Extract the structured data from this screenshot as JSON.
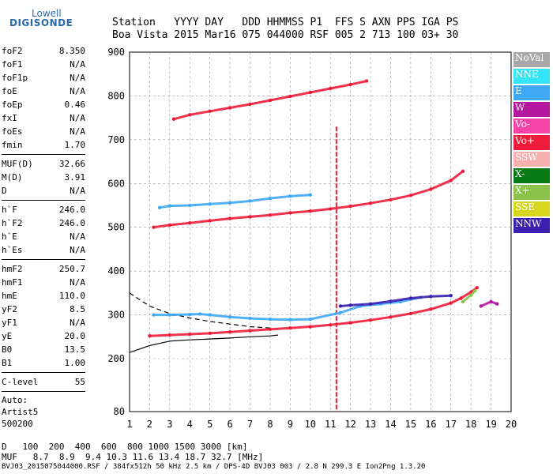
{
  "logo": {
    "top": "Lowell",
    "main": "DIGISONDE"
  },
  "header": {
    "labels": [
      "Station",
      "YYYY",
      "DAY",
      "DDD",
      "HHMMSS",
      "P1",
      "FFS",
      "S",
      "AXN",
      "PPS",
      "IGA",
      "PS"
    ],
    "values": [
      "Boa Vista",
      "2015",
      "Mar16",
      "075",
      "044000",
      "RSF",
      "005",
      "2",
      "713",
      "100",
      "03+",
      "30"
    ]
  },
  "params": {
    "group1": [
      {
        "label": "foF2",
        "value": "8.350"
      },
      {
        "label": "foF1",
        "value": "N/A"
      },
      {
        "label": "foF1p",
        "value": "N/A"
      },
      {
        "label": "foE",
        "value": "N/A"
      },
      {
        "label": "foEp",
        "value": "0.46"
      },
      {
        "label": "fxI",
        "value": "N/A"
      },
      {
        "label": "foEs",
        "value": "N/A"
      },
      {
        "label": "fmin",
        "value": "1.70"
      }
    ],
    "group2": [
      {
        "label": "MUF(D)",
        "value": "32.66"
      },
      {
        "label": "M(D)",
        "value": "3.91"
      },
      {
        "label": "D",
        "value": "N/A"
      }
    ],
    "group3": [
      {
        "label": "h`F",
        "value": "246.0"
      },
      {
        "label": "h`F2",
        "value": "246.0"
      },
      {
        "label": "h`E",
        "value": "N/A"
      },
      {
        "label": "h`Es",
        "value": "N/A"
      }
    ],
    "group4": [
      {
        "label": "hmF2",
        "value": "250.7"
      },
      {
        "label": "hmF1",
        "value": "N/A"
      },
      {
        "label": "hmE",
        "value": "110.0"
      },
      {
        "label": "yF2",
        "value": "8.5"
      },
      {
        "label": "yF1",
        "value": "N/A"
      },
      {
        "label": "yE",
        "value": "20.0"
      },
      {
        "label": "B0",
        "value": "13.5"
      },
      {
        "label": "B1",
        "value": "1.00"
      }
    ],
    "clevel": {
      "label": "C-level",
      "value": "55"
    },
    "autoscale": [
      "Auto:",
      "Artist5",
      "500200"
    ]
  },
  "legend": [
    {
      "label": "NoVal",
      "color": "#a8a8a8"
    },
    {
      "label": "NNE",
      "color": "#33e5f5"
    },
    {
      "label": "E",
      "color": "#3fa9f5"
    },
    {
      "label": "W",
      "color": "#b5179e"
    },
    {
      "label": "Vo-",
      "color": "#f543a8"
    },
    {
      "label": "Vo+",
      "color": "#ee1c3a"
    },
    {
      "label": "SSW",
      "color": "#f7b0b0"
    },
    {
      "label": "X-",
      "color": "#0a7a16"
    },
    {
      "label": "X+",
      "color": "#8bc34a"
    },
    {
      "label": "SSE",
      "color": "#d7d71e"
    },
    {
      "label": "NNW",
      "color": "#3a1fb0"
    }
  ],
  "footer": {
    "d_label": "D",
    "d_values": [
      "100",
      "200",
      "400",
      "600",
      "800",
      "1000",
      "1500",
      "3000",
      "[km]"
    ],
    "muf_label": "MUF",
    "muf_values": [
      "8.7",
      "8.9",
      "9.4",
      "10.3",
      "11.6",
      "13.4",
      "18.7",
      "32.7",
      "[MHz]"
    ],
    "file_line": "BVJ03_2015075044000.RSF / 384fx512h 50 kHz 2.5 km / DPS-4D BVJ03 003 / 2.8 N 299.3 E Ion2Png 1.3.20"
  },
  "chart_data": {
    "type": "scatter",
    "xlim": [
      1,
      20
    ],
    "ylim": [
      80,
      900
    ],
    "x_ticks": [
      "1",
      "2",
      "3",
      "4",
      "5",
      "6",
      "7",
      "8",
      "9",
      "10",
      "11",
      "12",
      "13",
      "14",
      "15",
      "16",
      "17",
      "18",
      "19",
      "20"
    ],
    "y_ticks": [
      "80",
      "200",
      "300",
      "400",
      "500",
      "600",
      "700",
      "800",
      "900"
    ],
    "grid": "dashed",
    "series": [
      {
        "color": "#ee1c3a",
        "points": [
          [
            2,
            252
          ],
          [
            3,
            254
          ],
          [
            4,
            256
          ],
          [
            5,
            258
          ],
          [
            6,
            261
          ],
          [
            7,
            264
          ],
          [
            8,
            267
          ],
          [
            9,
            270
          ],
          [
            10,
            273
          ],
          [
            11,
            277
          ],
          [
            12,
            282
          ],
          [
            13,
            288
          ],
          [
            14,
            295
          ],
          [
            15,
            303
          ],
          [
            16,
            313
          ],
          [
            17,
            327
          ],
          [
            17.5,
            338
          ],
          [
            18,
            352
          ],
          [
            18.3,
            362
          ]
        ]
      },
      {
        "color": "#ee1c3a",
        "points": [
          [
            2.2,
            500
          ],
          [
            3,
            505
          ],
          [
            4,
            510
          ],
          [
            5,
            515
          ],
          [
            6,
            520
          ],
          [
            7,
            524
          ],
          [
            8,
            528
          ],
          [
            9,
            533
          ],
          [
            10,
            537
          ],
          [
            11,
            542
          ],
          [
            12,
            548
          ],
          [
            13,
            555
          ],
          [
            14,
            563
          ],
          [
            15,
            573
          ],
          [
            16,
            587
          ],
          [
            17,
            607
          ],
          [
            17.6,
            628
          ]
        ]
      },
      {
        "color": "#ee1c3a",
        "points": [
          [
            3.2,
            747
          ],
          [
            4,
            757
          ],
          [
            5,
            765
          ],
          [
            6,
            773
          ],
          [
            7,
            781
          ],
          [
            8,
            790
          ],
          [
            9,
            799
          ],
          [
            10,
            808
          ],
          [
            11,
            817
          ],
          [
            12,
            826
          ],
          [
            12.8,
            834
          ]
        ]
      },
      {
        "color": "#3fa9f5",
        "points": [
          [
            2.2,
            300
          ],
          [
            3,
            300
          ],
          [
            4,
            301
          ],
          [
            4.5,
            302
          ],
          [
            5,
            300
          ],
          [
            6,
            295
          ],
          [
            7,
            292
          ],
          [
            8,
            290
          ],
          [
            9,
            289
          ],
          [
            10,
            290
          ],
          [
            11.5,
            305
          ],
          [
            12.5,
            320
          ],
          [
            13.5,
            325
          ],
          [
            14.5,
            330
          ],
          [
            15.5,
            340
          ]
        ]
      },
      {
        "color": "#3fa9f5",
        "points": [
          [
            2.5,
            545
          ],
          [
            3,
            549
          ],
          [
            4,
            550
          ],
          [
            5,
            553
          ],
          [
            6,
            556
          ],
          [
            7,
            560
          ],
          [
            8,
            566
          ],
          [
            9,
            571
          ],
          [
            10,
            574
          ]
        ]
      },
      {
        "color": "#3a1fb0",
        "points": [
          [
            11.5,
            320
          ],
          [
            12,
            322
          ],
          [
            13,
            325
          ],
          [
            14,
            331
          ],
          [
            15,
            338
          ],
          [
            16,
            342
          ],
          [
            17,
            344
          ]
        ]
      },
      {
        "color": "#b5179e",
        "points": [
          [
            18.5,
            320
          ],
          [
            19,
            330
          ],
          [
            19.3,
            325
          ]
        ]
      },
      {
        "color": "#8bc34a",
        "points": [
          [
            17.6,
            330
          ],
          [
            18,
            345
          ],
          [
            18.2,
            355
          ]
        ]
      }
    ],
    "model_curves": [
      {
        "style": "dashed",
        "points": [
          [
            1,
            350
          ],
          [
            2,
            320
          ],
          [
            3,
            303
          ],
          [
            4,
            293
          ],
          [
            5,
            285
          ],
          [
            6,
            279
          ],
          [
            7,
            273
          ],
          [
            8,
            270
          ]
        ]
      },
      {
        "style": "solid",
        "points": [
          [
            1,
            214
          ],
          [
            2,
            230
          ],
          [
            3,
            240
          ],
          [
            4,
            243
          ],
          [
            5,
            245
          ],
          [
            6,
            247
          ],
          [
            7,
            250
          ],
          [
            8,
            252
          ],
          [
            8.4,
            254
          ]
        ]
      }
    ],
    "vertical_spike": {
      "x": 11.3,
      "y_range": [
        80,
        730
      ]
    }
  }
}
